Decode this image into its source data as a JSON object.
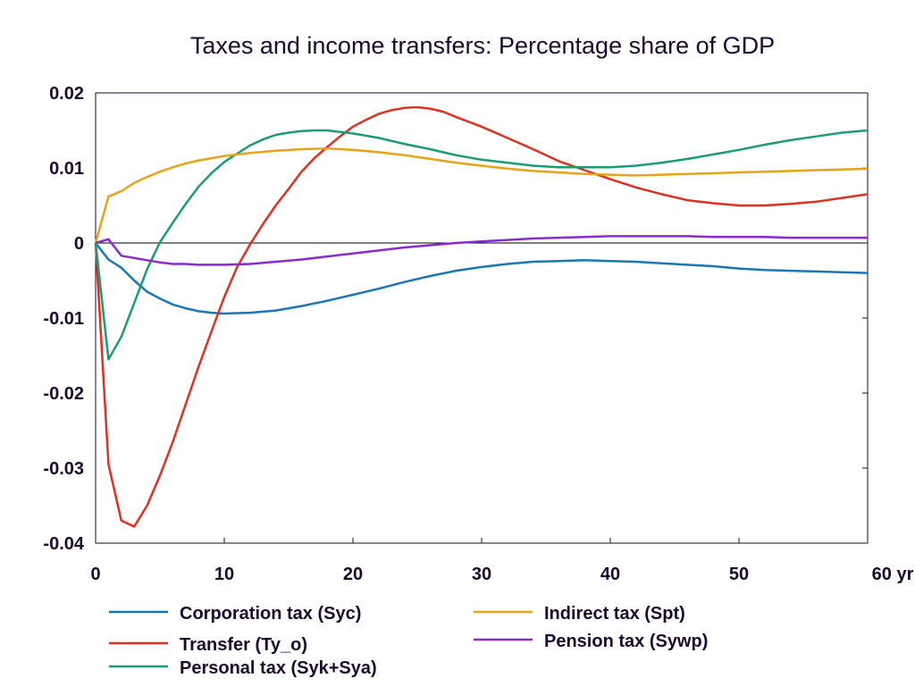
{
  "chart_data": {
    "type": "line",
    "title": "Taxes and income transfers: Percentage share of GDP",
    "xlabel": "",
    "ylabel": "",
    "xlim": [
      0,
      60
    ],
    "ylim": [
      -0.04,
      0.02
    ],
    "x_ticks": [
      {
        "value": 0,
        "label": "0"
      },
      {
        "value": 10,
        "label": "10"
      },
      {
        "value": 20,
        "label": "20"
      },
      {
        "value": 30,
        "label": "30"
      },
      {
        "value": 40,
        "label": "40"
      },
      {
        "value": 50,
        "label": "50"
      },
      {
        "value": 60,
        "label": "60 yr"
      }
    ],
    "y_ticks": [
      {
        "value": 0.02,
        "label": "0.02"
      },
      {
        "value": 0.01,
        "label": "0.01"
      },
      {
        "value": 0,
        "label": "0"
      },
      {
        "value": -0.01,
        "label": "-0.01"
      },
      {
        "value": -0.02,
        "label": "-0.02"
      },
      {
        "value": -0.03,
        "label": "-0.03"
      },
      {
        "value": -0.04,
        "label": "-0.04"
      }
    ],
    "grid": false,
    "zero_line": true,
    "legend_position": "bottom",
    "series": [
      {
        "name": "Corporation tax (Syc)",
        "color": "#1a77b5",
        "points": [
          [
            0,
            0
          ],
          [
            1,
            -0.0022
          ],
          [
            2,
            -0.0033
          ],
          [
            3,
            -0.005
          ],
          [
            4,
            -0.0065
          ],
          [
            5,
            -0.0074
          ],
          [
            6,
            -0.0082
          ],
          [
            7,
            -0.0087
          ],
          [
            8,
            -0.0091
          ],
          [
            9,
            -0.0093
          ],
          [
            10,
            -0.0094
          ],
          [
            12,
            -0.0093
          ],
          [
            14,
            -0.009
          ],
          [
            16,
            -0.0084
          ],
          [
            18,
            -0.0077
          ],
          [
            20,
            -0.0069
          ],
          [
            22,
            -0.0061
          ],
          [
            24,
            -0.0052
          ],
          [
            26,
            -0.0044
          ],
          [
            28,
            -0.0037
          ],
          [
            30,
            -0.0032
          ],
          [
            32,
            -0.0028
          ],
          [
            34,
            -0.0025
          ],
          [
            36,
            -0.0024
          ],
          [
            38,
            -0.0023
          ],
          [
            40,
            -0.0024
          ],
          [
            42,
            -0.0025
          ],
          [
            44,
            -0.0027
          ],
          [
            46,
            -0.0029
          ],
          [
            48,
            -0.0031
          ],
          [
            50,
            -0.0034
          ],
          [
            52,
            -0.0036
          ],
          [
            54,
            -0.0037
          ],
          [
            56,
            -0.0038
          ],
          [
            58,
            -0.0039
          ],
          [
            60,
            -0.004
          ]
        ]
      },
      {
        "name": "Transfer (Ty_o)",
        "color": "#e03022",
        "points": [
          [
            0,
            0
          ],
          [
            1,
            -0.0295
          ],
          [
            2,
            -0.037
          ],
          [
            3,
            -0.0378
          ],
          [
            4,
            -0.035
          ],
          [
            5,
            -0.031
          ],
          [
            6,
            -0.0265
          ],
          [
            7,
            -0.0215
          ],
          [
            8,
            -0.0165
          ],
          [
            9,
            -0.0118
          ],
          [
            10,
            -0.0072
          ],
          [
            11,
            -0.0032
          ],
          [
            12,
            -0.0002
          ],
          [
            13,
            0.0025
          ],
          [
            14,
            0.005
          ],
          [
            15,
            0.0072
          ],
          [
            16,
            0.0095
          ],
          [
            17,
            0.0113
          ],
          [
            18,
            0.0128
          ],
          [
            19,
            0.0142
          ],
          [
            20,
            0.0155
          ],
          [
            21,
            0.0164
          ],
          [
            22,
            0.0172
          ],
          [
            23,
            0.0177
          ],
          [
            24,
            0.018
          ],
          [
            25,
            0.0181
          ],
          [
            26,
            0.0179
          ],
          [
            27,
            0.0175
          ],
          [
            28,
            0.0168
          ],
          [
            30,
            0.0155
          ],
          [
            32,
            0.014
          ],
          [
            34,
            0.0125
          ],
          [
            36,
            0.0109
          ],
          [
            38,
            0.0097
          ],
          [
            40,
            0.0085
          ],
          [
            42,
            0.0074
          ],
          [
            44,
            0.0065
          ],
          [
            46,
            0.0057
          ],
          [
            48,
            0.0053
          ],
          [
            50,
            0.005
          ],
          [
            52,
            0.005
          ],
          [
            54,
            0.0052
          ],
          [
            56,
            0.0055
          ],
          [
            58,
            0.006
          ],
          [
            60,
            0.0065
          ]
        ]
      },
      {
        "name": "Personal tax (Syk+Sya)",
        "color": "#1a9c74",
        "points": [
          [
            0,
            0
          ],
          [
            1,
            -0.0155
          ],
          [
            2,
            -0.0125
          ],
          [
            3,
            -0.008
          ],
          [
            4,
            -0.0035
          ],
          [
            5,
            0.0001
          ],
          [
            6,
            0.0027
          ],
          [
            7,
            0.0052
          ],
          [
            8,
            0.0075
          ],
          [
            9,
            0.0093
          ],
          [
            10,
            0.0108
          ],
          [
            11,
            0.0119
          ],
          [
            12,
            0.013
          ],
          [
            13,
            0.0138
          ],
          [
            14,
            0.0144
          ],
          [
            15,
            0.0147
          ],
          [
            16,
            0.0149
          ],
          [
            17,
            0.015
          ],
          [
            18,
            0.015
          ],
          [
            20,
            0.0146
          ],
          [
            22,
            0.014
          ],
          [
            24,
            0.0132
          ],
          [
            26,
            0.0125
          ],
          [
            28,
            0.0117
          ],
          [
            30,
            0.0111
          ],
          [
            32,
            0.0107
          ],
          [
            34,
            0.0103
          ],
          [
            36,
            0.0101
          ],
          [
            38,
            0.0101
          ],
          [
            40,
            0.0101
          ],
          [
            42,
            0.0103
          ],
          [
            44,
            0.0107
          ],
          [
            46,
            0.0112
          ],
          [
            48,
            0.0118
          ],
          [
            50,
            0.0124
          ],
          [
            52,
            0.0131
          ],
          [
            54,
            0.0137
          ],
          [
            56,
            0.0142
          ],
          [
            58,
            0.0147
          ],
          [
            60,
            0.015
          ]
        ]
      },
      {
        "name": "Indirect tax (Spt)",
        "color": "#e8a317",
        "points": [
          [
            0,
            0
          ],
          [
            1,
            0.0062
          ],
          [
            2,
            0.0069
          ],
          [
            3,
            0.008
          ],
          [
            4,
            0.0088
          ],
          [
            5,
            0.0095
          ],
          [
            6,
            0.0101
          ],
          [
            7,
            0.0106
          ],
          [
            8,
            0.011
          ],
          [
            9,
            0.0113
          ],
          [
            10,
            0.0116
          ],
          [
            12,
            0.012
          ],
          [
            14,
            0.0123
          ],
          [
            16,
            0.0125
          ],
          [
            18,
            0.0126
          ],
          [
            20,
            0.0124
          ],
          [
            22,
            0.0121
          ],
          [
            24,
            0.0117
          ],
          [
            26,
            0.0112
          ],
          [
            28,
            0.0107
          ],
          [
            30,
            0.0103
          ],
          [
            32,
            0.0099
          ],
          [
            34,
            0.0096
          ],
          [
            36,
            0.0094
          ],
          [
            38,
            0.0092
          ],
          [
            40,
            0.0091
          ],
          [
            42,
            0.009
          ],
          [
            44,
            0.0091
          ],
          [
            46,
            0.0092
          ],
          [
            48,
            0.0093
          ],
          [
            50,
            0.0094
          ],
          [
            52,
            0.0095
          ],
          [
            54,
            0.0096
          ],
          [
            56,
            0.0097
          ],
          [
            58,
            0.0098
          ],
          [
            60,
            0.0099
          ]
        ]
      },
      {
        "name": "Pension tax (Sywp)",
        "color": "#8a2bd2",
        "points": [
          [
            0,
            0
          ],
          [
            1,
            0.0005
          ],
          [
            2,
            -0.0017
          ],
          [
            3,
            -0.002
          ],
          [
            4,
            -0.0023
          ],
          [
            5,
            -0.0026
          ],
          [
            6,
            -0.0028
          ],
          [
            7,
            -0.0028
          ],
          [
            8,
            -0.0029
          ],
          [
            9,
            -0.0029
          ],
          [
            10,
            -0.0029
          ],
          [
            12,
            -0.0028
          ],
          [
            14,
            -0.0025
          ],
          [
            16,
            -0.0022
          ],
          [
            18,
            -0.0018
          ],
          [
            20,
            -0.0014
          ],
          [
            22,
            -0.001
          ],
          [
            24,
            -0.0006
          ],
          [
            26,
            -0.0003
          ],
          [
            28,
            0
          ],
          [
            30,
            0.0002
          ],
          [
            32,
            0.0004
          ],
          [
            34,
            0.0006
          ],
          [
            36,
            0.0007
          ],
          [
            38,
            0.0008
          ],
          [
            40,
            0.0009
          ],
          [
            42,
            0.0009
          ],
          [
            44,
            0.0009
          ],
          [
            46,
            0.0009
          ],
          [
            48,
            0.0008
          ],
          [
            50,
            0.0008
          ],
          [
            52,
            0.0008
          ],
          [
            54,
            0.0007
          ],
          [
            56,
            0.0007
          ],
          [
            58,
            0.0007
          ],
          [
            60,
            0.0007
          ]
        ]
      }
    ]
  }
}
